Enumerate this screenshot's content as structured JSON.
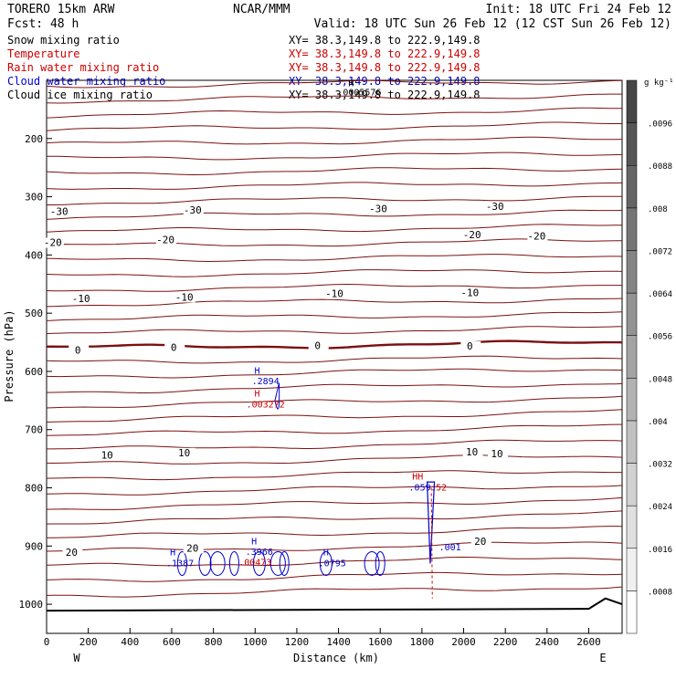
{
  "header": {
    "model": "TORERO  15km ARW",
    "org": "NCAR/MMM",
    "init": "Init: 18 UTC Fri 24 Feb 12",
    "fcst": "Fcst:   48 h",
    "valid": "Valid: 18 UTC Sun 26 Feb 12 (12 CST Sun 26 Feb 12)",
    "fields": [
      {
        "label": "Snow mixing ratio",
        "xy": "XY=  38.3,149.8 to 222.9,149.8",
        "color": "#000000"
      },
      {
        "label": "Temperature",
        "xy": "XY=  38.3,149.8 to 222.9,149.8",
        "color": "#cc0000"
      },
      {
        "label": "Rain water mixing ratio",
        "xy": "XY=  38.3,149.8 to 222.9,149.8",
        "color": "#cc0000"
      },
      {
        "label": "Cloud water mixing ratio",
        "xy": "XY=  38.3,149.8 to 222.9,149.8",
        "color": "#0000cc"
      },
      {
        "label": "Cloud ice mixing ratio",
        "xy": "XY=  38.3,149.8 to 222.9,149.8",
        "color": "#000000"
      }
    ]
  },
  "chart_data": {
    "type": "cross-section contour",
    "xlabel": "Distance (km)",
    "ylabel": "Pressure (hPa)",
    "xlim": [
      0,
      2760
    ],
    "ylim": [
      1050,
      100
    ],
    "x_ticks": [
      0,
      200,
      400,
      600,
      800,
      1000,
      1200,
      1400,
      1600,
      1800,
      2000,
      2200,
      2400,
      2600
    ],
    "y_ticks": [
      200,
      300,
      400,
      500,
      600,
      700,
      800,
      900,
      1000
    ],
    "x_ends": {
      "left": "W",
      "right": "E"
    },
    "colorbar": {
      "unit": "g kg⁻¹",
      "ticks": [
        ".0008",
        ".0016",
        ".0024",
        ".0032",
        ".004",
        ".0048",
        ".0056",
        ".0064",
        ".0072",
        ".008",
        ".0088",
        ".0096"
      ]
    },
    "temperature_labels": [
      {
        "text": "-30",
        "x": 60,
        "p": 330
      },
      {
        "text": "-30",
        "x": 700,
        "p": 327
      },
      {
        "text": "-30",
        "x": 1590,
        "p": 325
      },
      {
        "text": "-30",
        "x": 2150,
        "p": 321
      },
      {
        "text": "-20",
        "x": 30,
        "p": 383
      },
      {
        "text": "-20",
        "x": 570,
        "p": 378
      },
      {
        "text": "-20",
        "x": 2040,
        "p": 370
      },
      {
        "text": "-20",
        "x": 2350,
        "p": 372
      },
      {
        "text": "-10",
        "x": 165,
        "p": 479
      },
      {
        "text": "-10",
        "x": 660,
        "p": 477
      },
      {
        "text": "-10",
        "x": 1380,
        "p": 471
      },
      {
        "text": "-10",
        "x": 2030,
        "p": 469
      },
      {
        "text": "0",
        "x": 150,
        "p": 568
      },
      {
        "text": "0",
        "x": 610,
        "p": 563
      },
      {
        "text": "0",
        "x": 1300,
        "p": 560
      },
      {
        "text": "0",
        "x": 2030,
        "p": 561
      },
      {
        "text": "10",
        "x": 290,
        "p": 748
      },
      {
        "text": "10",
        "x": 660,
        "p": 744
      },
      {
        "text": "10",
        "x": 2040,
        "p": 743
      },
      {
        "text": "10",
        "x": 2160,
        "p": 746
      },
      {
        "text": "20",
        "x": 120,
        "p": 915
      },
      {
        "text": "20",
        "x": 700,
        "p": 908
      },
      {
        "text": "20",
        "x": 2080,
        "p": 896
      }
    ],
    "extrema_labels": [
      {
        "text": "H",
        "x": 1010,
        "p": 604,
        "color": "#0000cc"
      },
      {
        "text": ".2894",
        "x": 1050,
        "p": 622,
        "color": "#0000cc"
      },
      {
        "text": "H",
        "x": 1010,
        "p": 643,
        "color": "#cc0000"
      },
      {
        "text": ".003272",
        "x": 1050,
        "p": 662,
        "color": "#cc0000"
      },
      {
        "text": "H",
        "x": 1460,
        "p": 110,
        "color": "#000000"
      },
      {
        "text": ".0005576",
        "x": 1500,
        "p": 126,
        "color": "#000000"
      },
      {
        "text": "HH",
        "x": 1780,
        "p": 786,
        "color": "#cc0000"
      },
      {
        "text": ".059",
        "x": 1790,
        "p": 805,
        "color": "#0000cc"
      },
      {
        "text": ".52",
        "x": 1880,
        "p": 805,
        "color": "#cc0000"
      },
      {
        "text": ".001",
        "x": 1935,
        "p": 907,
        "color": "#0000cc"
      },
      {
        "text": "H",
        "x": 605,
        "p": 916,
        "color": "#0000cc"
      },
      {
        "text": ".1387",
        "x": 640,
        "p": 935,
        "color": "#0000cc"
      },
      {
        "text": "H",
        "x": 995,
        "p": 897,
        "color": "#0000cc"
      },
      {
        "text": ".3966",
        "x": 1020,
        "p": 915,
        "color": "#0000cc"
      },
      {
        "text": ".00473",
        "x": 1000,
        "p": 933,
        "color": "#cc0000"
      },
      {
        "text": "H",
        "x": 1340,
        "p": 916,
        "color": "#0000cc"
      },
      {
        "text": ".0795",
        "x": 1370,
        "p": 935,
        "color": "#0000cc"
      }
    ],
    "freezing_level_hPa": 570,
    "surface_hPa": 1011
  }
}
